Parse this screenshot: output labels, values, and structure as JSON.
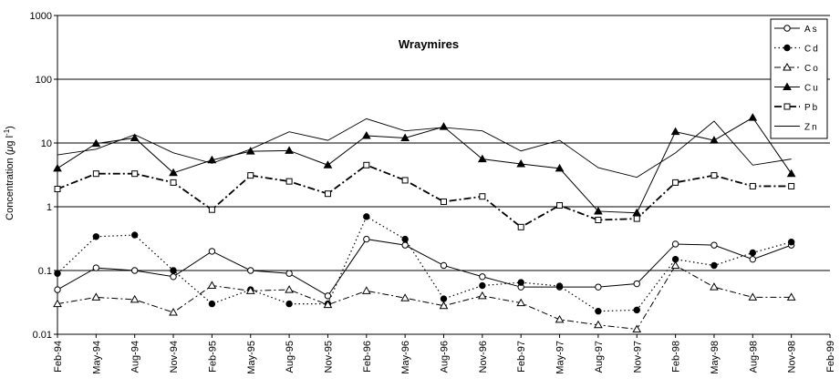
{
  "chart_data": {
    "type": "line",
    "title": "Wraymires",
    "ylabel_prefix": "Concentration (",
    "ylabel_mu": "μ",
    "ylabel_unit": "g l",
    "ylabel_exp": "-1",
    "ylabel_suffix": ")",
    "yscale": "log",
    "ylim": [
      0.01,
      1000
    ],
    "yticks": [
      "0.01",
      "0.1",
      "1",
      "10",
      "100",
      "1000"
    ],
    "categories": [
      "Feb-94",
      "May-94",
      "Aug-94",
      "Nov-94",
      "Feb-95",
      "May-95",
      "Aug-95",
      "Nov-95",
      "Feb-96",
      "May-96",
      "Aug-96",
      "Nov-96",
      "Feb-97",
      "May-97",
      "Aug-97",
      "Nov-97",
      "Feb-98",
      "May-98",
      "Aug-98",
      "Nov-98",
      "Feb-99"
    ],
    "grid": "horizontal",
    "legend_position": "top-right",
    "series": [
      {
        "name": "As",
        "marker": "open-circle",
        "dash": "solid",
        "values": [
          0.05,
          0.11,
          0.1,
          0.08,
          0.2,
          0.1,
          0.09,
          0.04,
          0.31,
          0.25,
          0.12,
          0.08,
          0.055,
          0.055,
          0.055,
          0.062,
          0.26,
          0.25,
          0.15,
          0.25,
          null
        ]
      },
      {
        "name": "Cd",
        "marker": "filled-circle",
        "dash": "dotted",
        "values": [
          0.09,
          0.34,
          0.36,
          0.1,
          0.03,
          0.05,
          0.03,
          0.03,
          0.7,
          0.31,
          0.036,
          0.058,
          0.065,
          0.057,
          0.023,
          0.024,
          0.15,
          0.12,
          0.19,
          0.28,
          null
        ]
      },
      {
        "name": "Co",
        "marker": "open-triangle",
        "dash": "dashdot",
        "values": [
          0.03,
          0.038,
          0.035,
          0.022,
          0.058,
          0.048,
          0.05,
          0.029,
          0.048,
          0.037,
          0.028,
          0.04,
          0.031,
          0.017,
          0.014,
          0.012,
          0.12,
          0.055,
          0.038,
          0.038,
          null
        ]
      },
      {
        "name": "Cu",
        "marker": "filled-triangle",
        "dash": "solid",
        "values": [
          4.0,
          9.8,
          12.0,
          3.4,
          5.4,
          7.4,
          7.6,
          4.5,
          13.0,
          12.0,
          18.0,
          5.6,
          4.7,
          4.0,
          0.85,
          0.8,
          15.0,
          11.0,
          25.0,
          3.3,
          null
        ]
      },
      {
        "name": "Pb",
        "marker": "open-square",
        "dash": "dashdot-heavy",
        "values": [
          1.9,
          3.3,
          3.3,
          2.4,
          0.9,
          3.1,
          2.5,
          1.6,
          4.5,
          2.6,
          1.2,
          1.45,
          0.48,
          1.05,
          0.62,
          0.65,
          2.4,
          3.1,
          2.1,
          2.1,
          null
        ]
      },
      {
        "name": "Zn",
        "marker": "none",
        "dash": "thin-solid",
        "values": [
          6.5,
          8.0,
          13.5,
          7.0,
          4.8,
          8.0,
          15.0,
          11.0,
          24.0,
          15.5,
          17.5,
          15.5,
          7.5,
          11.0,
          4.1,
          2.9,
          7.0,
          22.0,
          4.5,
          5.6,
          null
        ]
      }
    ]
  },
  "colors": {
    "line": "#000000",
    "background": "#ffffff"
  }
}
